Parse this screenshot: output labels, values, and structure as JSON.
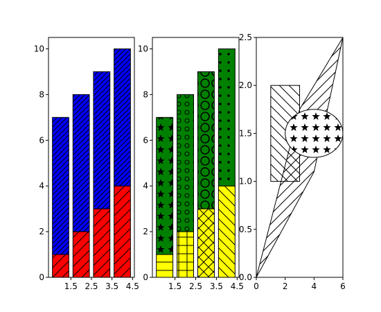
{
  "chart_data": [
    {
      "type": "bar",
      "x": [
        1,
        2,
        3,
        4
      ],
      "series": [
        {
          "color": "#ff0000",
          "hatch": [
            "/",
            "/",
            "/",
            "/"
          ],
          "values": [
            1,
            2,
            3,
            4
          ]
        },
        {
          "color": "#0000ff",
          "hatch": [
            "//",
            "//",
            "//",
            "//"
          ],
          "values": [
            6,
            6,
            6,
            6
          ]
        }
      ],
      "stacked": true,
      "xlim": [
        0.41,
        4.59
      ],
      "xticks": [
        1.5,
        2.5,
        3.5,
        4.5
      ],
      "ylim": [
        0,
        10.5
      ],
      "yticks": [
        0,
        2,
        4,
        6,
        8,
        10
      ]
    },
    {
      "type": "bar",
      "x": [
        1,
        2,
        3,
        4
      ],
      "series": [
        {
          "color": "#ffff00",
          "hatch": [
            "-",
            "+",
            "x",
            "\\"
          ],
          "values": [
            1,
            2,
            3,
            4
          ]
        },
        {
          "color": "#008000",
          "hatch": [
            "*",
            "o",
            "O",
            "."
          ],
          "values": [
            6,
            6,
            6,
            6
          ]
        }
      ],
      "stacked": true,
      "xlim": [
        0.41,
        4.59
      ],
      "xticks": [
        1.5,
        2.5,
        3.5,
        4.5
      ],
      "ylim": [
        0,
        10.5
      ],
      "yticks": [
        0,
        2,
        4,
        6,
        8,
        10
      ]
    },
    {
      "type": "patches",
      "xlim": [
        0,
        6
      ],
      "xticks": [
        0,
        2,
        4,
        6
      ],
      "ylim": [
        0,
        2.5
      ],
      "yticks": [
        {
          "value": 0,
          "label": "0.0"
        },
        0.5,
        {
          "value": 1,
          "label": "1.0"
        },
        1.5,
        {
          "value": 2,
          "label": "2.0"
        },
        2.5
      ]
    }
  ]
}
